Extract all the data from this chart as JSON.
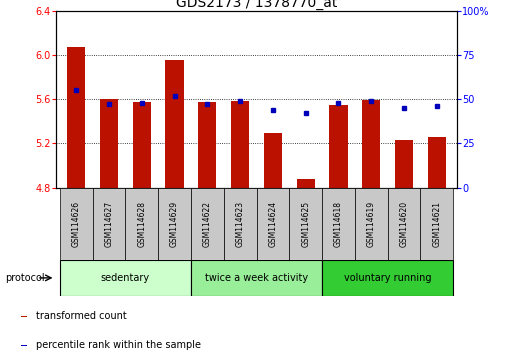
{
  "title": "GDS2173 / 1378770_at",
  "samples": [
    "GSM114626",
    "GSM114627",
    "GSM114628",
    "GSM114629",
    "GSM114622",
    "GSM114623",
    "GSM114624",
    "GSM114625",
    "GSM114618",
    "GSM114619",
    "GSM114620",
    "GSM114621"
  ],
  "red_values": [
    6.07,
    5.6,
    5.57,
    5.95,
    5.57,
    5.58,
    5.29,
    4.88,
    5.55,
    5.59,
    5.23,
    5.26
  ],
  "blue_values": [
    55,
    47,
    48,
    52,
    47,
    49,
    44,
    42,
    48,
    49,
    45,
    46
  ],
  "ylim_left": [
    4.8,
    6.4
  ],
  "ylim_right": [
    0,
    100
  ],
  "yticks_left": [
    4.8,
    5.2,
    5.6,
    6.0,
    6.4
  ],
  "yticks_right": [
    0,
    25,
    50,
    75,
    100
  ],
  "ytick_labels_right": [
    "0",
    "25",
    "50",
    "75",
    "100%"
  ],
  "baseline": 4.8,
  "groups": [
    {
      "label": "sedentary",
      "start": 0,
      "end": 4,
      "color": "#ccffcc"
    },
    {
      "label": "twice a week activity",
      "start": 4,
      "end": 8,
      "color": "#99ee99"
    },
    {
      "label": "voluntary running",
      "start": 8,
      "end": 12,
      "color": "#33cc33"
    }
  ],
  "protocol_label": "protocol",
  "red_color": "#bb1100",
  "blue_color": "#0000bb",
  "bar_width": 0.55,
  "legend_red": "transformed count",
  "legend_blue": "percentile rank within the sample",
  "sample_bg_color": "#c8c8c8",
  "title_fontsize": 10,
  "tick_fontsize": 7,
  "label_fontsize": 7
}
